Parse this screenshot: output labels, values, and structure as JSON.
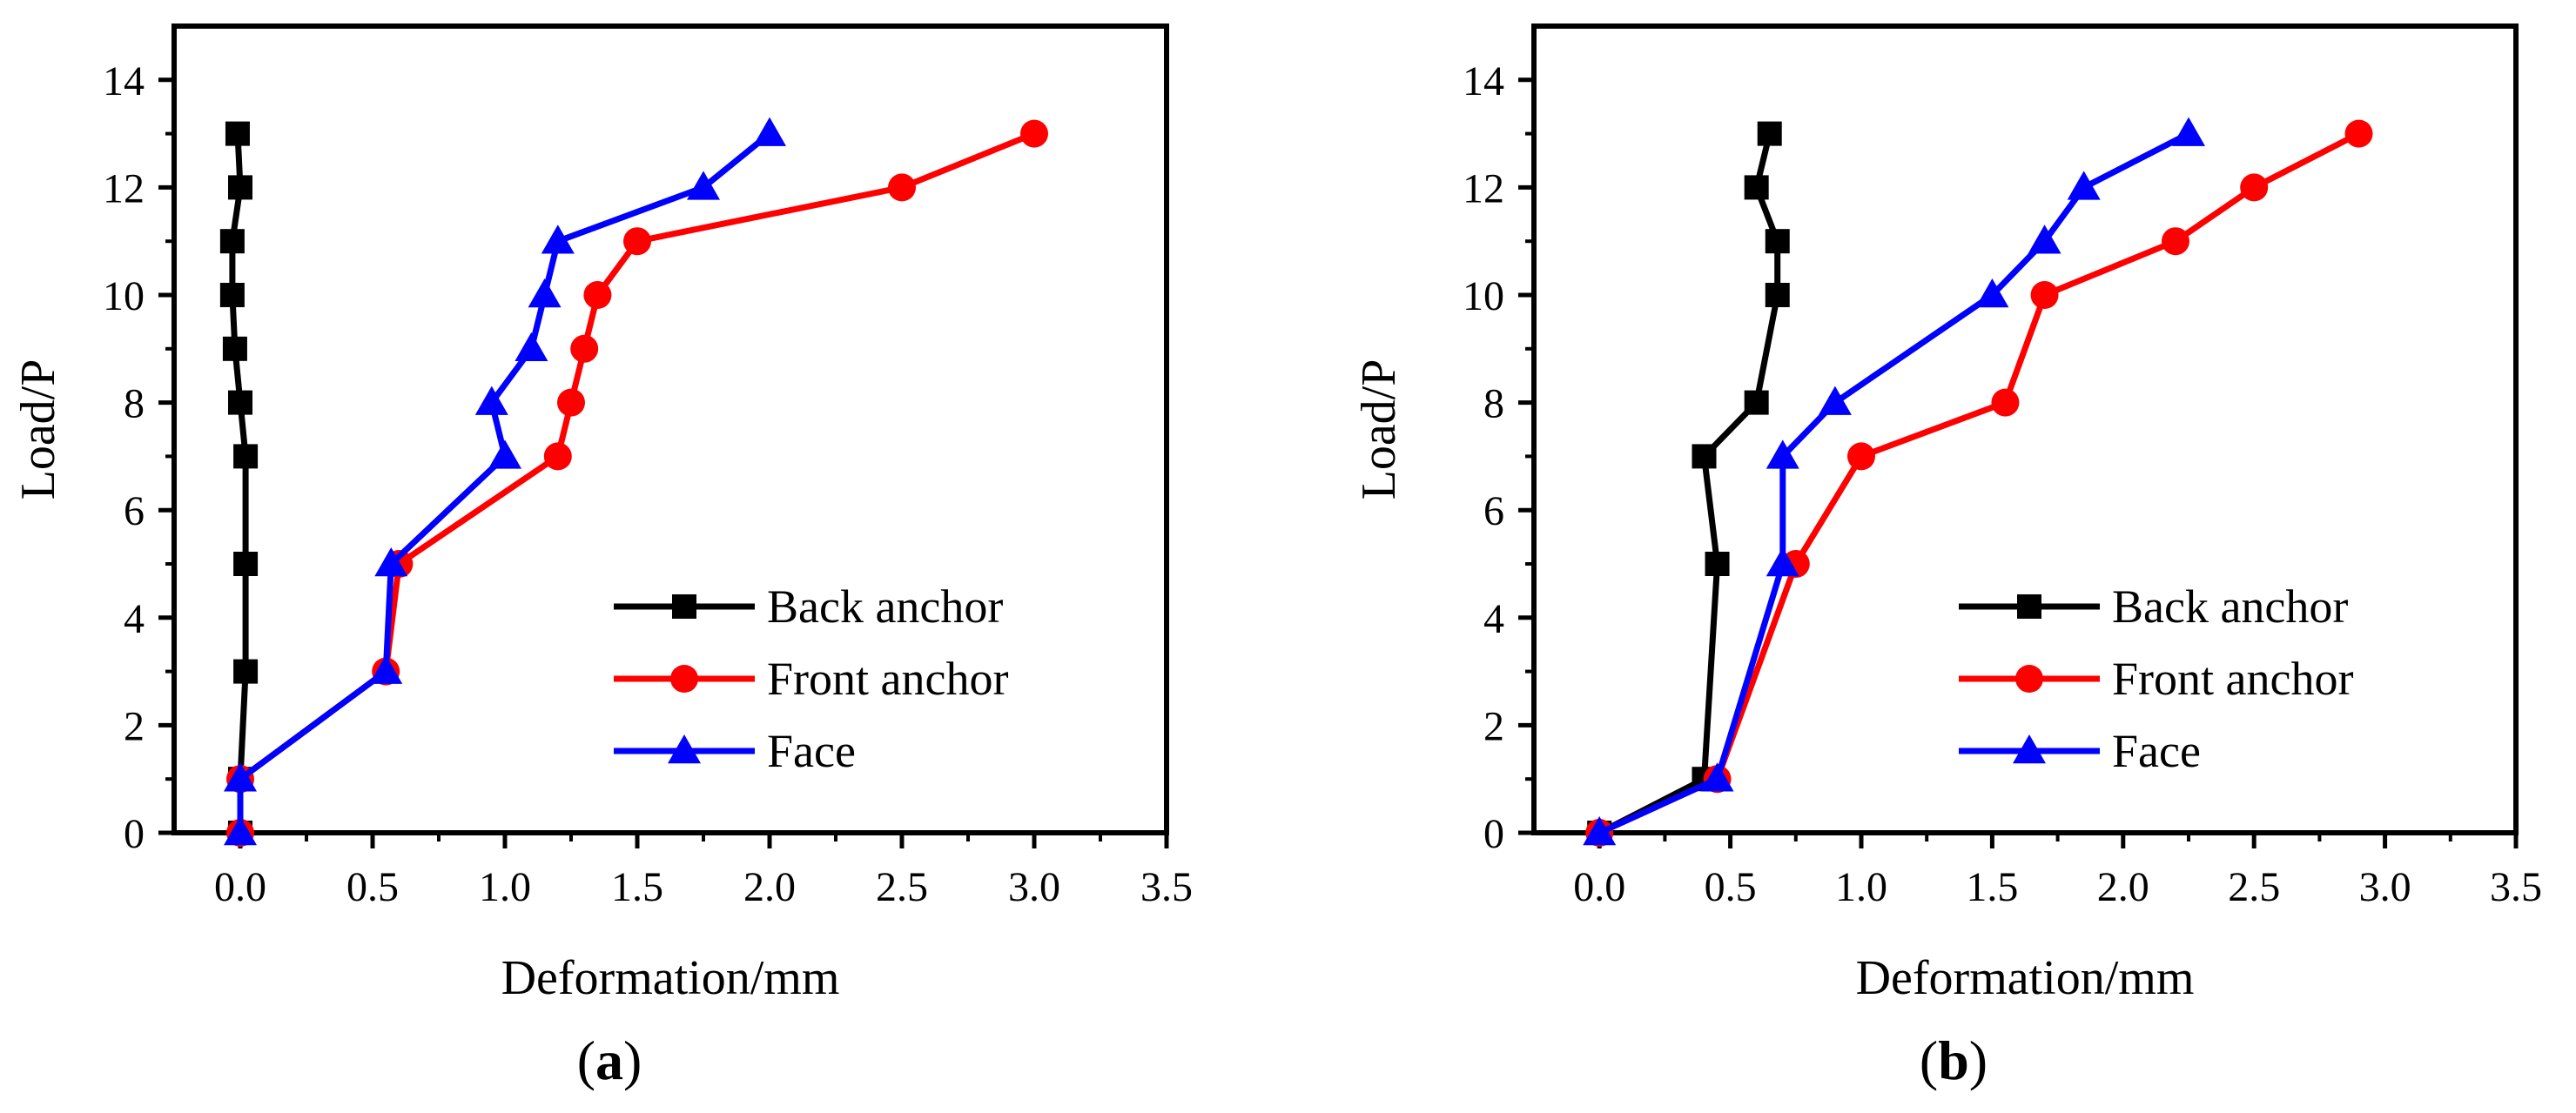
{
  "chart_data": [
    {
      "type": "line",
      "panel": "a",
      "xlabel": "Deformation/mm",
      "ylabel": "Load/P",
      "xlim": [
        -0.25,
        3.5
      ],
      "ylim": [
        0,
        15
      ],
      "xticks": [
        0.0,
        0.5,
        1.0,
        1.5,
        2.0,
        2.5,
        3.0,
        3.5
      ],
      "xtick_labels": [
        "0.0",
        "0.5",
        "1.0",
        "1.5",
        "2.0",
        "2.5",
        "3.0",
        "3.5"
      ],
      "yticks": [
        0,
        2,
        4,
        6,
        8,
        10,
        12,
        14
      ],
      "ytick_labels": [
        "0",
        "2",
        "4",
        "6",
        "8",
        "10",
        "12",
        "14"
      ],
      "legend_position": "bottom-right",
      "series": [
        {
          "name": "Back anchor",
          "color": "#000000",
          "marker": "square",
          "points": [
            [
              0.0,
              0
            ],
            [
              0.0,
              1
            ],
            [
              0.02,
              3
            ],
            [
              0.02,
              5
            ],
            [
              0.02,
              7
            ],
            [
              0.0,
              8
            ],
            [
              -0.02,
              9
            ],
            [
              -0.03,
              10
            ],
            [
              -0.03,
              11
            ],
            [
              0.0,
              12
            ],
            [
              -0.01,
              13
            ]
          ]
        },
        {
          "name": "Front anchor",
          "color": "#ff0000",
          "marker": "circle",
          "points": [
            [
              0.0,
              0
            ],
            [
              0.0,
              1
            ],
            [
              0.55,
              3
            ],
            [
              0.6,
              5
            ],
            [
              1.2,
              7
            ],
            [
              1.25,
              8
            ],
            [
              1.3,
              9
            ],
            [
              1.35,
              10
            ],
            [
              1.5,
              11
            ],
            [
              2.5,
              12
            ],
            [
              3.0,
              13
            ]
          ]
        },
        {
          "name": "Face",
          "color": "#0000ff",
          "marker": "triangle",
          "points": [
            [
              0.0,
              0
            ],
            [
              0.0,
              1
            ],
            [
              0.55,
              3
            ],
            [
              0.57,
              5
            ],
            [
              1.0,
              7
            ],
            [
              0.95,
              8
            ],
            [
              1.1,
              9
            ],
            [
              1.15,
              10
            ],
            [
              1.2,
              11
            ],
            [
              1.75,
              12
            ],
            [
              2.0,
              13
            ]
          ]
        }
      ]
    },
    {
      "type": "line",
      "panel": "b",
      "xlabel": "Deformation/mm",
      "ylabel": "Load/P",
      "xlim": [
        -0.25,
        3.5
      ],
      "ylim": [
        0,
        15
      ],
      "xticks": [
        0.0,
        0.5,
        1.0,
        1.5,
        2.0,
        2.5,
        3.0,
        3.5
      ],
      "xtick_labels": [
        "0.0",
        "0.5",
        "1.0",
        "1.5",
        "2.0",
        "2.5",
        "3.0",
        "3.5"
      ],
      "yticks": [
        0,
        2,
        4,
        6,
        8,
        10,
        12,
        14
      ],
      "ytick_labels": [
        "0",
        "2",
        "4",
        "6",
        "8",
        "10",
        "12",
        "14"
      ],
      "legend_position": "bottom-right",
      "series": [
        {
          "name": "Back anchor",
          "color": "#000000",
          "marker": "square",
          "points": [
            [
              0.0,
              0
            ],
            [
              0.4,
              1
            ],
            [
              0.45,
              5
            ],
            [
              0.4,
              7
            ],
            [
              0.6,
              8
            ],
            [
              0.68,
              10
            ],
            [
              0.68,
              11
            ],
            [
              0.6,
              12
            ],
            [
              0.65,
              13
            ]
          ]
        },
        {
          "name": "Front anchor",
          "color": "#ff0000",
          "marker": "circle",
          "points": [
            [
              0.0,
              0
            ],
            [
              0.45,
              1
            ],
            [
              0.75,
              5
            ],
            [
              1.0,
              7
            ],
            [
              1.55,
              8
            ],
            [
              1.7,
              10
            ],
            [
              2.2,
              11
            ],
            [
              2.5,
              12
            ],
            [
              2.9,
              13
            ]
          ]
        },
        {
          "name": "Face",
          "color": "#0000ff",
          "marker": "triangle",
          "points": [
            [
              0.0,
              0
            ],
            [
              0.45,
              1
            ],
            [
              0.7,
              5
            ],
            [
              0.7,
              7
            ],
            [
              0.9,
              8
            ],
            [
              1.5,
              10
            ],
            [
              1.7,
              11
            ],
            [
              1.85,
              12
            ],
            [
              2.25,
              13
            ]
          ]
        }
      ]
    }
  ],
  "panel_labels": [
    "(a)",
    "(b)"
  ]
}
